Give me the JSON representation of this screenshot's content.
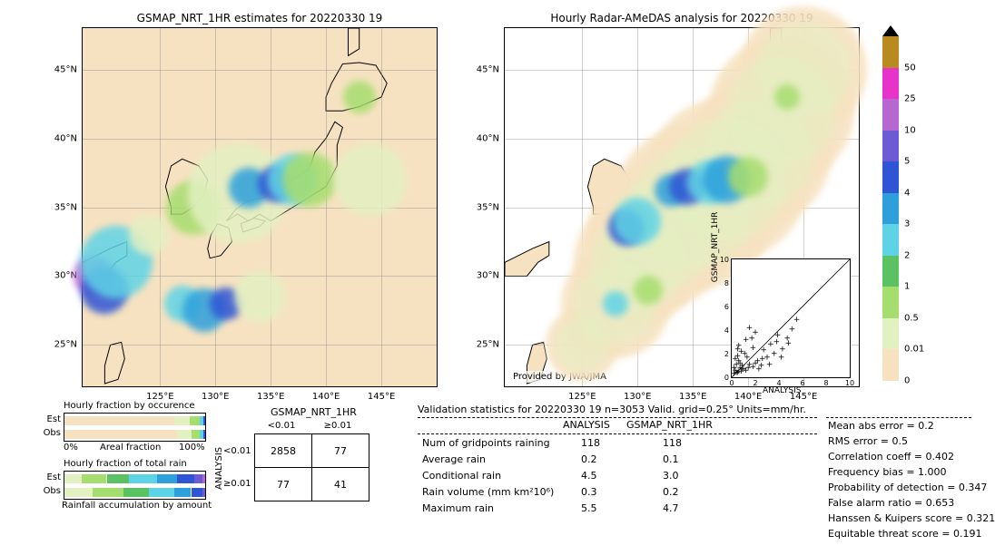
{
  "colors": {
    "land": "#f6e2c0",
    "grid": "#888888",
    "coast": "#000000",
    "cb": [
      {
        "v": "0",
        "c": "#f6e2c0"
      },
      {
        "v": "0.01",
        "c": "#e3f0c2"
      },
      {
        "v": "0.5",
        "c": "#a6dd6f"
      },
      {
        "v": "1",
        "c": "#5bc263"
      },
      {
        "v": "2",
        "c": "#5fd3e6"
      },
      {
        "v": "3",
        "c": "#2da0dc"
      },
      {
        "v": "4",
        "c": "#2f55d4"
      },
      {
        "v": "5",
        "c": "#6d5bd4"
      },
      {
        "v": "10",
        "c": "#b568d0"
      },
      {
        "v": "25",
        "c": "#e733c9"
      },
      {
        "v": "50",
        "c": "#b88a1f"
      }
    ]
  },
  "map_left": {
    "title": "GSMAP_NRT_1HR estimates for 20220330 19",
    "lon_ticks": [
      "125°E",
      "130°E",
      "135°E",
      "140°E",
      "145°E"
    ],
    "lon_vals": [
      125,
      130,
      135,
      140,
      145
    ],
    "lat_ticks": [
      "25°N",
      "30°N",
      "35°N",
      "40°N",
      "45°N"
    ],
    "lat_vals": [
      25,
      30,
      35,
      40,
      45
    ],
    "lon_range": [
      118,
      150
    ],
    "lat_range": [
      22,
      48
    ],
    "blobs": [
      {
        "lon": 119,
        "lat": 30,
        "r": 22,
        "c": "#b568d0"
      },
      {
        "lon": 120,
        "lat": 29,
        "r": 26,
        "c": "#2f55d4"
      },
      {
        "lon": 121,
        "lat": 31,
        "r": 40,
        "c": "#5fd3e6"
      },
      {
        "lon": 128,
        "lat": 35,
        "r": 30,
        "c": "#a6dd6f"
      },
      {
        "lon": 132,
        "lat": 36,
        "r": 55,
        "c": "#e3f0c2"
      },
      {
        "lon": 133,
        "lat": 36.4,
        "r": 22,
        "c": "#2da0dc"
      },
      {
        "lon": 135.5,
        "lat": 36.7,
        "r": 20,
        "c": "#2f55d4"
      },
      {
        "lon": 137,
        "lat": 37,
        "r": 28,
        "c": "#5fd3e6"
      },
      {
        "lon": 138.5,
        "lat": 37,
        "r": 30,
        "c": "#a6dd6f"
      },
      {
        "lon": 144,
        "lat": 37,
        "r": 40,
        "c": "#e3f0c2"
      },
      {
        "lon": 127,
        "lat": 28,
        "r": 20,
        "c": "#5fd3e6"
      },
      {
        "lon": 129,
        "lat": 27.5,
        "r": 24,
        "c": "#2da0dc"
      },
      {
        "lon": 131,
        "lat": 28,
        "r": 18,
        "c": "#2f55d4"
      },
      {
        "lon": 134,
        "lat": 28.5,
        "r": 28,
        "c": "#e3f0c2"
      },
      {
        "lon": 143,
        "lat": 43,
        "r": 18,
        "c": "#a6dd6f"
      },
      {
        "lon": 124,
        "lat": 33,
        "r": 22,
        "c": "#e3f0c2"
      }
    ]
  },
  "map_right": {
    "title": "Hourly Radar-AMeDAS analysis for 20220330 19",
    "provided": "Provided by JWA/JMA",
    "blobs": [
      {
        "lon": 129,
        "lat": 33.5,
        "r": 20,
        "c": "#2f55d4"
      },
      {
        "lon": 130,
        "lat": 34,
        "r": 26,
        "c": "#5fd3e6"
      },
      {
        "lon": 133,
        "lat": 36.2,
        "r": 18,
        "c": "#2da0dc"
      },
      {
        "lon": 134.5,
        "lat": 36.5,
        "r": 20,
        "c": "#2f55d4"
      },
      {
        "lon": 136.5,
        "lat": 36.8,
        "r": 24,
        "c": "#5fd3e6"
      },
      {
        "lon": 138,
        "lat": 37,
        "r": 26,
        "c": "#2da0dc"
      },
      {
        "lon": 140,
        "lat": 37.2,
        "r": 22,
        "c": "#a6dd6f"
      },
      {
        "lon": 128,
        "lat": 28,
        "r": 14,
        "c": "#5fd3e6"
      },
      {
        "lon": 131,
        "lat": 29,
        "r": 16,
        "c": "#a6dd6f"
      },
      {
        "lon": 143.5,
        "lat": 43,
        "r": 14,
        "c": "#a6dd6f"
      }
    ],
    "halo": [
      {
        "lon": 125,
        "lat": 25,
        "r": 40
      },
      {
        "lon": 128,
        "lat": 28,
        "r": 60
      },
      {
        "lon": 130,
        "lat": 31,
        "r": 70
      },
      {
        "lon": 132,
        "lat": 33,
        "r": 80
      },
      {
        "lon": 135,
        "lat": 35,
        "r": 90
      },
      {
        "lon": 138,
        "lat": 37,
        "r": 90
      },
      {
        "lon": 141,
        "lat": 39,
        "r": 80
      },
      {
        "lon": 143,
        "lat": 42,
        "r": 80
      },
      {
        "lon": 145,
        "lat": 45,
        "r": 70
      }
    ]
  },
  "scatter": {
    "xlabel": "ANALYSIS",
    "ylabel": "GSMAP_NRT_1HR",
    "lim": [
      0,
      10
    ],
    "ticks": [
      0,
      2,
      4,
      6,
      8,
      10
    ],
    "points": [
      [
        0.2,
        0.1
      ],
      [
        0.3,
        0.4
      ],
      [
        0.5,
        0.2
      ],
      [
        0.7,
        0.6
      ],
      [
        0.4,
        0.9
      ],
      [
        0.8,
        0.3
      ],
      [
        1.0,
        0.5
      ],
      [
        0.6,
        1.2
      ],
      [
        1.2,
        0.4
      ],
      [
        1.3,
        1.5
      ],
      [
        0.9,
        0.8
      ],
      [
        1.5,
        0.9
      ],
      [
        1.1,
        1.8
      ],
      [
        2.0,
        1.0
      ],
      [
        1.8,
        2.3
      ],
      [
        2.2,
        1.2
      ],
      [
        0.3,
        1.4
      ],
      [
        2.5,
        0.8
      ],
      [
        2.7,
        2.1
      ],
      [
        3.0,
        1.5
      ],
      [
        0.5,
        2.2
      ],
      [
        3.3,
        2.6
      ],
      [
        1.7,
        3.1
      ],
      [
        3.6,
        1.8
      ],
      [
        3.9,
        3.4
      ],
      [
        4.3,
        2.2
      ],
      [
        1.2,
        3.0
      ],
      [
        4.7,
        3.1
      ],
      [
        5.1,
        3.9
      ],
      [
        5.5,
        4.7
      ],
      [
        2.0,
        3.6
      ],
      [
        0.4,
        0.2
      ],
      [
        0.2,
        0.6
      ],
      [
        0.6,
        0.3
      ],
      [
        0.9,
        0.5
      ],
      [
        0.7,
        1.0
      ],
      [
        1.4,
        0.6
      ],
      [
        0.5,
        1.6
      ],
      [
        1.8,
        0.7
      ],
      [
        2.3,
        0.5
      ],
      [
        0.8,
        2.0
      ],
      [
        2.6,
        1.4
      ],
      [
        3.2,
        0.9
      ],
      [
        0.6,
        2.5
      ],
      [
        3.8,
        2.8
      ],
      [
        4.2,
        1.5
      ],
      [
        4.8,
        2.7
      ],
      [
        1.5,
        4.0
      ]
    ]
  },
  "hbar1": {
    "title": "Hourly fraction by occurence",
    "axistext_l": "0%",
    "axistext_r": "100%",
    "axis_label": "Areal fraction",
    "rows": [
      {
        "label": "Est",
        "segs": [
          {
            "w": 78,
            "c": "#f6e2c0"
          },
          {
            "w": 11,
            "c": "#e3f0c2"
          },
          {
            "w": 7,
            "c": "#a6dd6f"
          },
          {
            "w": 3,
            "c": "#5fd3e6"
          },
          {
            "w": 1,
            "c": "#2f55d4"
          }
        ]
      },
      {
        "label": "Obs",
        "segs": [
          {
            "w": 80,
            "c": "#f6e2c0"
          },
          {
            "w": 10,
            "c": "#e3f0c2"
          },
          {
            "w": 6,
            "c": "#a6dd6f"
          },
          {
            "w": 3,
            "c": "#5fd3e6"
          },
          {
            "w": 1,
            "c": "#2f55d4"
          }
        ]
      }
    ]
  },
  "hbar2": {
    "title": "Hourly fraction of total rain",
    "footer": "Rainfall accumulation by amount",
    "rows": [
      {
        "label": "Est",
        "segs": [
          {
            "w": 12,
            "c": "#e3f0c2"
          },
          {
            "w": 18,
            "c": "#a6dd6f"
          },
          {
            "w": 16,
            "c": "#5bc263"
          },
          {
            "w": 20,
            "c": "#5fd3e6"
          },
          {
            "w": 14,
            "c": "#2da0dc"
          },
          {
            "w": 12,
            "c": "#2f55d4"
          },
          {
            "w": 6,
            "c": "#6d5bd4"
          },
          {
            "w": 2,
            "c": "#b568d0"
          }
        ]
      },
      {
        "label": "Obs",
        "segs": [
          {
            "w": 20,
            "c": "#e3f0c2"
          },
          {
            "w": 22,
            "c": "#a6dd6f"
          },
          {
            "w": 18,
            "c": "#5bc263"
          },
          {
            "w": 18,
            "c": "#5fd3e6"
          },
          {
            "w": 12,
            "c": "#2da0dc"
          },
          {
            "w": 8,
            "c": "#2f55d4"
          },
          {
            "w": 2,
            "c": "#6d5bd4"
          }
        ]
      }
    ]
  },
  "cont": {
    "title": "GSMAP_NRT_1HR",
    "col_heads": [
      "<0.01",
      "≥0.01"
    ],
    "row_heads": [
      "<0.01",
      "≥0.01"
    ],
    "side": "ANALYSIS",
    "cells": [
      [
        "2858",
        "77"
      ],
      [
        "77",
        "41"
      ]
    ]
  },
  "valid": {
    "title": "Validation statistics for 20220330 19  n=3053 Valid. grid=0.25°  Units=mm/hr.",
    "col_heads": [
      "ANALYSIS",
      "GSMAP_NRT_1HR"
    ],
    "rows": [
      {
        "label": "Num of gridpoints raining",
        "a": "118",
        "g": "118"
      },
      {
        "label": "Average rain",
        "a": "0.2",
        "g": "0.1"
      },
      {
        "label": "Conditional rain",
        "a": "4.5",
        "g": "3.0"
      },
      {
        "label": "Rain volume (mm km²10⁶)",
        "a": "0.3",
        "g": "0.2"
      },
      {
        "label": "Maximum rain",
        "a": "5.5",
        "g": "4.7"
      }
    ]
  },
  "stats2": [
    {
      "k": "Mean abs error",
      "v": "0.2"
    },
    {
      "k": "RMS error",
      "v": "0.5"
    },
    {
      "k": "Correlation coeff",
      "v": "0.402"
    },
    {
      "k": "Frequency bias",
      "v": "1.000"
    },
    {
      "k": "Probability of detection",
      "v": "0.347"
    },
    {
      "k": "False alarm ratio",
      "v": "0.653"
    },
    {
      "k": "Hanssen & Kuipers score",
      "v": "0.321"
    },
    {
      "k": "Equitable threat score",
      "v": "0.191"
    }
  ]
}
